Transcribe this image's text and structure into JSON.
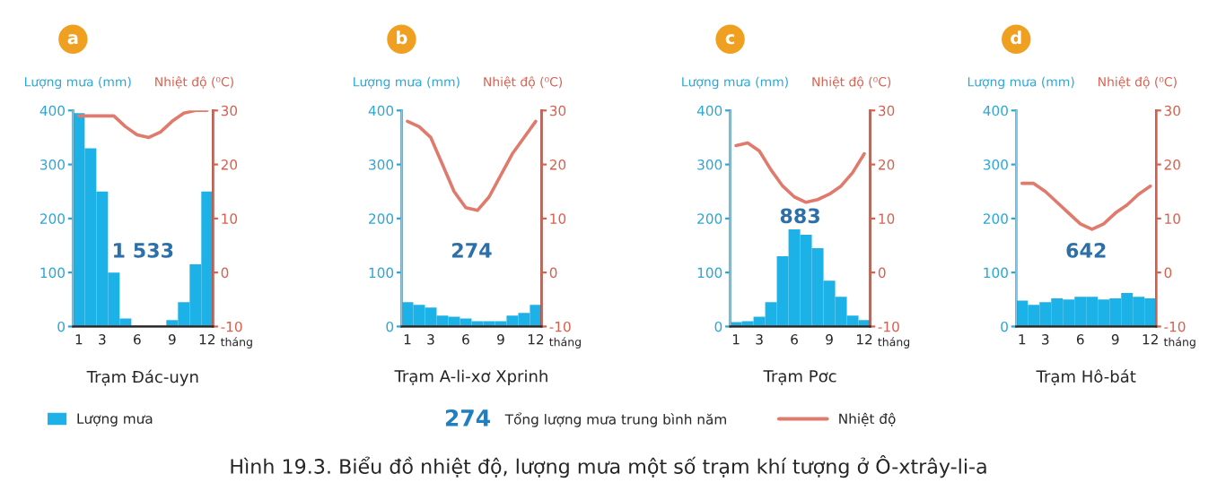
{
  "chart_data": [
    {
      "type": "bar",
      "title": "a",
      "subtitle": "Trạm Đác-uyn",
      "xlabel": "tháng",
      "ylabel": "Lượng mưa (mm)",
      "y2label": "Nhiệt độ (⁰C)",
      "categories": [
        "1",
        null,
        "3",
        null,
        null,
        "6",
        null,
        null,
        "9",
        null,
        null,
        "12"
      ],
      "series": [
        {
          "name": "Lượng mưa",
          "type": "bar",
          "color": "#1cb2e8",
          "values": [
            395,
            330,
            250,
            100,
            15,
            null,
            null,
            null,
            12,
            45,
            115,
            250
          ]
        },
        {
          "name": "Nhiệt độ",
          "type": "line",
          "axis": "y2",
          "color": "#e07a6c",
          "values": [
            29,
            29,
            29,
            29,
            27,
            25.5,
            25,
            26,
            28,
            29.5,
            30,
            30
          ]
        }
      ],
      "ylim": [
        0,
        400
      ],
      "yticks": [
        0,
        100,
        200,
        300,
        400
      ],
      "y2lim": [
        -10,
        30
      ],
      "y2ticks": [
        -10,
        0,
        10,
        20,
        30
      ],
      "annotations": [
        "1 533"
      ],
      "legend": "bottom"
    },
    {
      "type": "bar",
      "title": "b",
      "subtitle": "Trạm A-li-xơ Xprinh",
      "xlabel": "tháng",
      "ylabel": "Lượng mưa (mm)",
      "y2label": "Nhiệt độ (⁰C)",
      "categories": [
        "1",
        null,
        "3",
        null,
        null,
        "6",
        null,
        null,
        "9",
        null,
        null,
        "12"
      ],
      "series": [
        {
          "type": "bar",
          "color": "#1cb2e8",
          "values": [
            45,
            40,
            35,
            20,
            18,
            15,
            10,
            10,
            10,
            20,
            25,
            40
          ]
        },
        {
          "type": "line",
          "axis": "y2",
          "color": "#e07a6c",
          "values": [
            28,
            27,
            25,
            20,
            15,
            12,
            11.5,
            14,
            18,
            22,
            25,
            28
          ]
        }
      ],
      "ylim": [
        0,
        400
      ],
      "yticks": [
        0,
        100,
        200,
        300,
        400
      ],
      "y2lim": [
        -10,
        30
      ],
      "y2ticks": [
        -10,
        0,
        10,
        20,
        30
      ],
      "annotations": [
        "274"
      ]
    },
    {
      "type": "bar",
      "title": "c",
      "subtitle": "Trạm Pơc",
      "xlabel": "tháng",
      "ylabel": "Lượng mưa (mm)",
      "y2label": "Nhiệt độ (⁰C)",
      "categories": [
        "1",
        null,
        "3",
        null,
        null,
        "6",
        null,
        null,
        "9",
        null,
        null,
        "12"
      ],
      "series": [
        {
          "type": "bar",
          "color": "#1cb2e8",
          "values": [
            8,
            10,
            18,
            45,
            130,
            180,
            170,
            145,
            85,
            55,
            20,
            12
          ]
        },
        {
          "type": "line",
          "axis": "y2",
          "color": "#e07a6c",
          "values": [
            23.5,
            24,
            22.5,
            19,
            16,
            14,
            13,
            13.5,
            14.5,
            16,
            18.5,
            22
          ]
        }
      ],
      "ylim": [
        0,
        400
      ],
      "yticks": [
        0,
        100,
        200,
        300,
        400
      ],
      "y2lim": [
        -10,
        30
      ],
      "y2ticks": [
        -10,
        0,
        10,
        20,
        30
      ],
      "annotations": [
        "883"
      ]
    },
    {
      "type": "bar",
      "title": "d",
      "subtitle": "Trạm Hô-bát",
      "xlabel": "tháng",
      "ylabel": "Lượng mưa (mm)",
      "y2label": "Nhiệt độ (⁰C)",
      "categories": [
        "1",
        null,
        "3",
        null,
        null,
        "6",
        null,
        null,
        "9",
        null,
        null,
        "12"
      ],
      "series": [
        {
          "type": "bar",
          "color": "#1cb2e8",
          "values": [
            48,
            40,
            45,
            52,
            50,
            55,
            55,
            50,
            52,
            62,
            55,
            52
          ]
        },
        {
          "type": "line",
          "axis": "y2",
          "color": "#e07a6c",
          "values": [
            16.5,
            16.5,
            15,
            13,
            11,
            9,
            8,
            9,
            11,
            12.5,
            14.5,
            16
          ]
        }
      ],
      "ylim": [
        0,
        400
      ],
      "yticks": [
        0,
        100,
        200,
        300,
        400
      ],
      "y2lim": [
        -10,
        30
      ],
      "y2ticks": [
        -10,
        0,
        10,
        20,
        30
      ],
      "annotations": [
        "642"
      ]
    },
    {
      "type": "other",
      "annotations": [
        "274",
        "Tổng lượng mưa trung bình năm",
        "Hình 19.3. Biểu đồ nhiệt độ, lượng mưa một số trạm khí tượng ở Ô-xtrây-li-a"
      ]
    }
  ]
}
